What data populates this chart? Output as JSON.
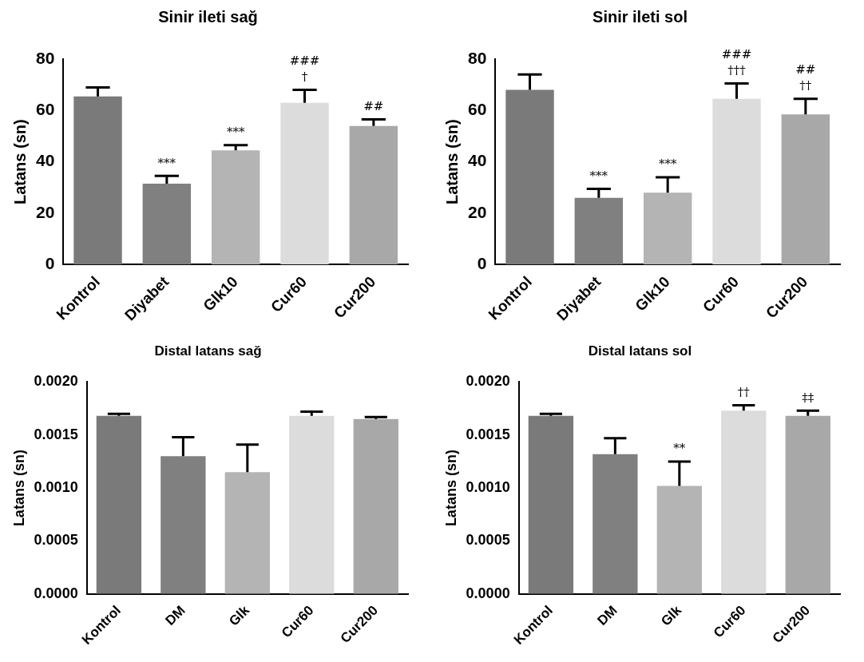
{
  "chart_data": [
    {
      "type": "bar",
      "title": "Sinir ileti sağ",
      "ylabel": "Latans (sn)",
      "categories": [
        "Kontrol",
        "Diyabet",
        "Glk10",
        "Cur60",
        "Cur200"
      ],
      "values": [
        65.5,
        31.5,
        44.5,
        63,
        54
      ],
      "errors": [
        [
          65.5,
          69
        ],
        [
          31.5,
          34.5
        ],
        [
          44.5,
          46.5
        ],
        [
          63,
          68
        ],
        [
          54,
          56.5
        ]
      ],
      "colors": [
        "#7a7a7a",
        "#808080",
        "#b4b4b4",
        "#dcdcdc",
        "#a8a8a8"
      ],
      "ylim": [
        0,
        80
      ],
      "yticks": [
        0,
        20,
        40,
        60,
        80
      ],
      "grid": false,
      "legend": false,
      "annotations": [
        {
          "text": "***",
          "x": "Diyabet",
          "y": 34.5
        },
        {
          "text": "***",
          "x": "Glk10",
          "y": 46.5
        },
        {
          "text": "†",
          "x": "Cur60",
          "y": 68
        },
        {
          "text": "###",
          "x": "Cur60",
          "y": 68
        },
        {
          "text": "##",
          "x": "Cur200",
          "y": 56.5
        }
      ]
    },
    {
      "type": "bar",
      "title": "Sinir ileti sol",
      "ylabel": "Latans (sn)",
      "categories": [
        "Kontrol",
        "Diyabet",
        "Glk10",
        "Cur60",
        "Cur200"
      ],
      "values": [
        68,
        26,
        28,
        64.5,
        58.5
      ],
      "errors": [
        [
          68,
          74
        ],
        [
          26,
          29.5
        ],
        [
          28,
          34
        ],
        [
          64.5,
          70.5
        ],
        [
          58.5,
          64.5
        ]
      ],
      "colors": [
        "#7a7a7a",
        "#808080",
        "#b4b4b4",
        "#dcdcdc",
        "#a8a8a8"
      ],
      "ylim": [
        0,
        80
      ],
      "yticks": [
        0,
        20,
        40,
        60,
        80
      ],
      "grid": false,
      "legend": false,
      "annotations": [
        {
          "text": "***",
          "x": "Diyabet",
          "y": 29.5
        },
        {
          "text": "***",
          "x": "Glk10",
          "y": 34
        },
        {
          "text": "†††",
          "x": "Cur60",
          "y": 70.5
        },
        {
          "text": "###",
          "x": "Cur60",
          "y": 70.5
        },
        {
          "text": "††",
          "x": "Cur200",
          "y": 64.5
        },
        {
          "text": "##",
          "x": "Cur200",
          "y": 64.5
        }
      ]
    },
    {
      "type": "bar",
      "title": "Distal latans sağ",
      "ylabel": "Latans (sn)",
      "categories": [
        "Kontrol",
        "DM",
        "Glk",
        "Cur60",
        "Cur200"
      ],
      "values": [
        0.00168,
        0.0013,
        0.00115,
        0.00168,
        0.00165
      ],
      "errors": [
        [
          0.00168,
          0.0017
        ],
        [
          0.0013,
          0.00148
        ],
        [
          0.00115,
          0.00141
        ],
        [
          0.00168,
          0.00172
        ],
        [
          0.00165,
          0.00167
        ]
      ],
      "colors": [
        "#7a7a7a",
        "#808080",
        "#b4b4b4",
        "#dcdcdc",
        "#a8a8a8"
      ],
      "ylim": [
        0,
        0.002
      ],
      "yticks": [
        {
          "value": 0,
          "label": "0.0000"
        },
        {
          "value": 0.0005,
          "label": "0.0005"
        },
        {
          "value": 0.001,
          "label": "0.0010"
        },
        {
          "value": 0.0015,
          "label": "0.0015"
        },
        {
          "value": 0.002,
          "label": "0.0020"
        }
      ],
      "grid": false,
      "legend": false
    },
    {
      "type": "bar",
      "title": "Distal latans sol",
      "ylabel": "Latans (sn)",
      "categories": [
        "Kontrol",
        "DM",
        "Glk",
        "Cur60",
        "Cur200"
      ],
      "values": [
        0.00168,
        0.00132,
        0.00102,
        0.00173,
        0.00168
      ],
      "errors": [
        [
          0.00168,
          0.0017
        ],
        [
          0.00132,
          0.00147
        ],
        [
          0.00102,
          0.00125
        ],
        [
          0.00173,
          0.00178
        ],
        [
          0.00168,
          0.00173
        ]
      ],
      "colors": [
        "#7a7a7a",
        "#808080",
        "#b4b4b4",
        "#dcdcdc",
        "#a8a8a8"
      ],
      "ylim": [
        0,
        0.002
      ],
      "yticks": [
        {
          "value": 0,
          "label": "0.0000"
        },
        {
          "value": 0.0005,
          "label": "0.0005"
        },
        {
          "value": 0.001,
          "label": "0.0010"
        },
        {
          "value": 0.0015,
          "label": "0.0015"
        },
        {
          "value": 0.002,
          "label": "0.0020"
        }
      ],
      "grid": false,
      "legend": false,
      "annotations": [
        {
          "text": "**",
          "x": "Glk",
          "y": 0.00125
        },
        {
          "text": "††",
          "x": "Cur60",
          "y": 0.00178
        },
        {
          "text": "‡‡",
          "x": "Cur200",
          "y": 0.00173
        }
      ]
    }
  ]
}
